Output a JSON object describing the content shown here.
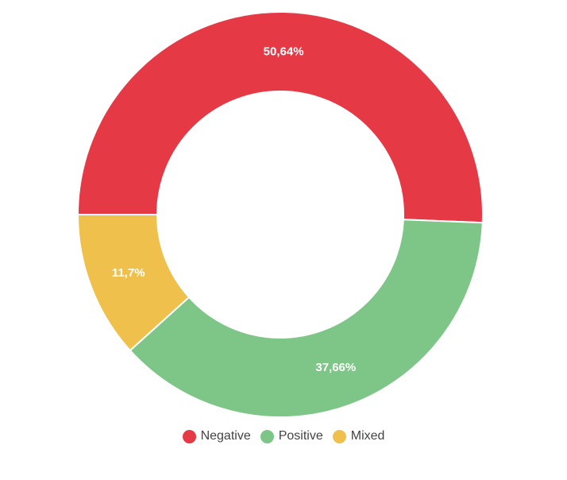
{
  "chart_data": {
    "type": "pie",
    "variant": "donut",
    "title": "",
    "slices": [
      {
        "label": "Negative",
        "value": 50.64,
        "display": "50,64%",
        "color": "#e63946"
      },
      {
        "label": "Positive",
        "value": 37.66,
        "display": "37,66%",
        "color": "#7ec687"
      },
      {
        "label": "Mixed",
        "value": 11.7,
        "display": "11,7%",
        "color": "#f0c04c"
      }
    ],
    "legend": {
      "placement": "bottom",
      "items": [
        "Negative",
        "Positive",
        "Mixed"
      ]
    }
  }
}
